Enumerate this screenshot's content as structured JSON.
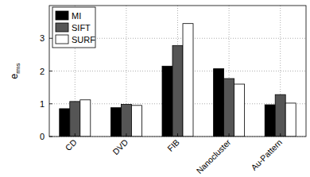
{
  "chart_data": {
    "type": "bar",
    "y_label": "erms",
    "categories": [
      "CD",
      "DVD",
      "FIB",
      "Nanocluster",
      "Au-Pattern"
    ],
    "series": [
      {
        "name": "MI",
        "color": "#000000",
        "values": [
          0.85,
          0.88,
          2.15,
          2.07,
          0.97
        ]
      },
      {
        "name": "SIFT",
        "color": "#555555",
        "values": [
          1.07,
          0.98,
          2.78,
          1.77,
          1.28
        ]
      },
      {
        "name": "SURF",
        "color": "#ffffff",
        "values": [
          1.12,
          0.95,
          3.45,
          1.6,
          1.02
        ]
      }
    ],
    "ylim": [
      0,
      4
    ],
    "yticks": [
      0,
      1,
      2,
      3
    ],
    "grid": true,
    "legend": "upper left"
  }
}
